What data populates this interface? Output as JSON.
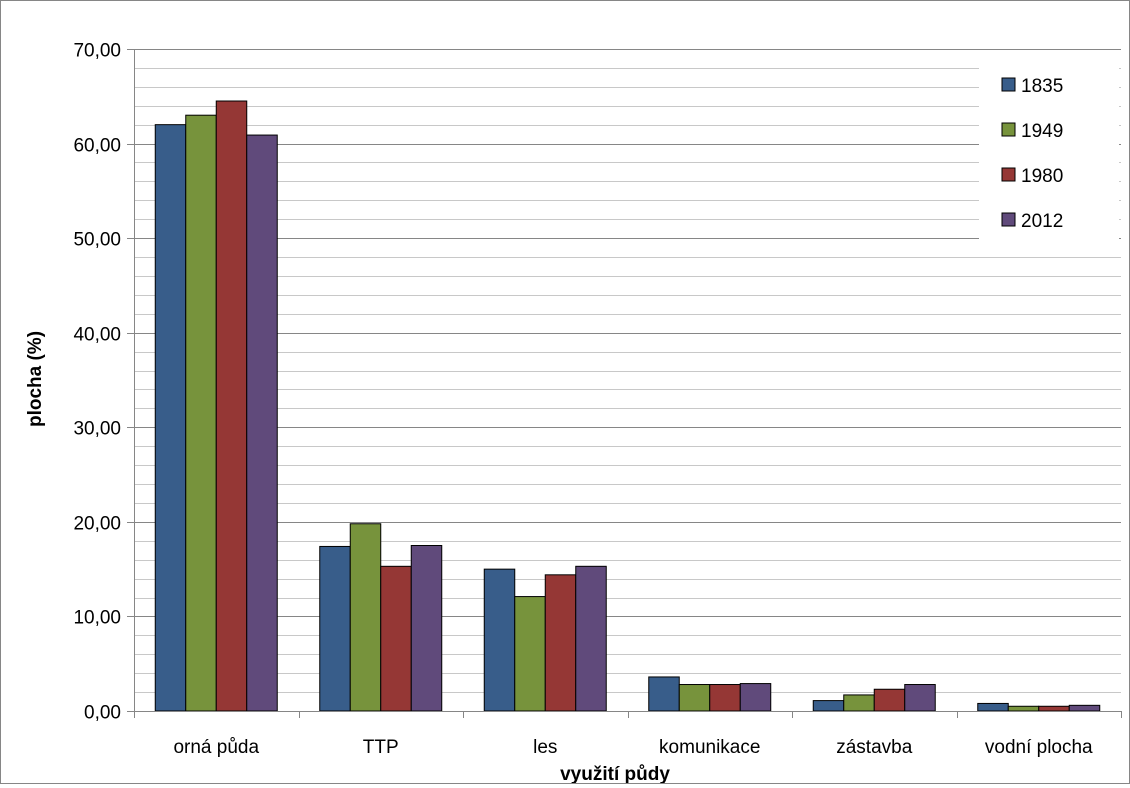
{
  "chart_data": {
    "type": "bar",
    "xlabel": "využití půdy",
    "ylabel": "plocha (%)",
    "ylim": [
      0,
      70
    ],
    "y_major_step": 10,
    "y_minor_step": 2,
    "y_tick_labels": [
      "0,00",
      "10,00",
      "20,00",
      "30,00",
      "40,00",
      "50,00",
      "60,00",
      "70,00"
    ],
    "grid": true,
    "legend_position": "top-right",
    "categories": [
      "orná půda",
      "TTP",
      "les",
      "komunikace",
      "zástavba",
      "vodní plocha"
    ],
    "series": [
      {
        "name": "1835",
        "color": "#385D8A",
        "values": [
          62.0,
          17.4,
          15.0,
          3.6,
          1.1,
          0.8
        ]
      },
      {
        "name": "1949",
        "color": "#77933C",
        "values": [
          63.0,
          19.8,
          12.1,
          2.8,
          1.7,
          0.5
        ]
      },
      {
        "name": "1980",
        "color": "#953735",
        "values": [
          64.5,
          15.3,
          14.4,
          2.8,
          2.3,
          0.5
        ]
      },
      {
        "name": "2012",
        "color": "#604A7B",
        "values": [
          60.9,
          17.5,
          15.3,
          2.9,
          2.8,
          0.6
        ]
      }
    ]
  }
}
